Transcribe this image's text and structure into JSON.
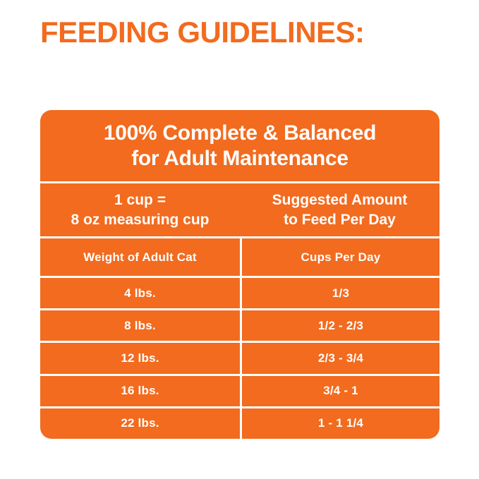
{
  "title": "FEEDING GUIDELINES:",
  "colors": {
    "orange": "#F26B1F",
    "panel_text": "#FFFFFF"
  },
  "panel": {
    "heading_line1": "100% Complete & Balanced",
    "heading_line2": "for Adult Maintenance",
    "cup_note_line1": "1 cup =",
    "cup_note_line2": "8 oz measuring cup",
    "suggested_line1": "Suggested Amount",
    "suggested_line2": "to Feed Per Day",
    "table": {
      "col_headers": [
        "Weight of Adult Cat",
        "Cups Per Day"
      ],
      "rows": [
        {
          "weight": "4 lbs.",
          "cups": "1/3"
        },
        {
          "weight": "8 lbs.",
          "cups": "1/2 - 2/3"
        },
        {
          "weight": "12 lbs.",
          "cups": "2/3 - 3/4"
        },
        {
          "weight": "16 lbs.",
          "cups": "3/4 - 1"
        },
        {
          "weight": "22 lbs.",
          "cups": "1 - 1 1/4"
        }
      ]
    }
  }
}
